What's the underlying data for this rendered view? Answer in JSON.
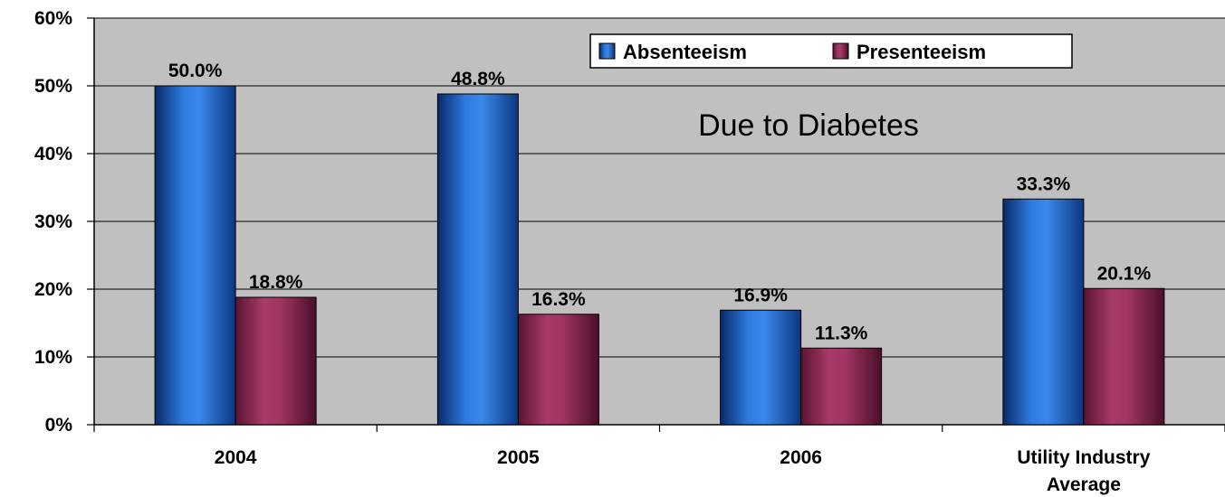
{
  "chart_data": {
    "type": "bar",
    "categories": [
      "2004",
      "2005",
      "2006",
      "Utility Industry Average"
    ],
    "series": [
      {
        "name": "Absenteeism",
        "values": [
          50.0,
          48.8,
          16.9,
          33.3
        ],
        "labels": [
          "50.0%",
          "48.8%",
          "16.9%",
          "33.3%"
        ]
      },
      {
        "name": "Presenteeism",
        "values": [
          18.8,
          16.3,
          11.3,
          20.1
        ],
        "labels": [
          "18.8%",
          "16.3%",
          "11.3%",
          "20.1%"
        ]
      }
    ],
    "ylim": [
      0,
      60
    ],
    "yticks": [
      "0%",
      "10%",
      "20%",
      "30%",
      "40%",
      "50%",
      "60%"
    ],
    "annotation": "Due to Diabetes",
    "grid": true,
    "legend_position": "top-right",
    "colors": {
      "plot_background": "#c0c0c0",
      "absenteeism": "#1e64c8",
      "presenteeism": "#9b2d5f"
    }
  }
}
